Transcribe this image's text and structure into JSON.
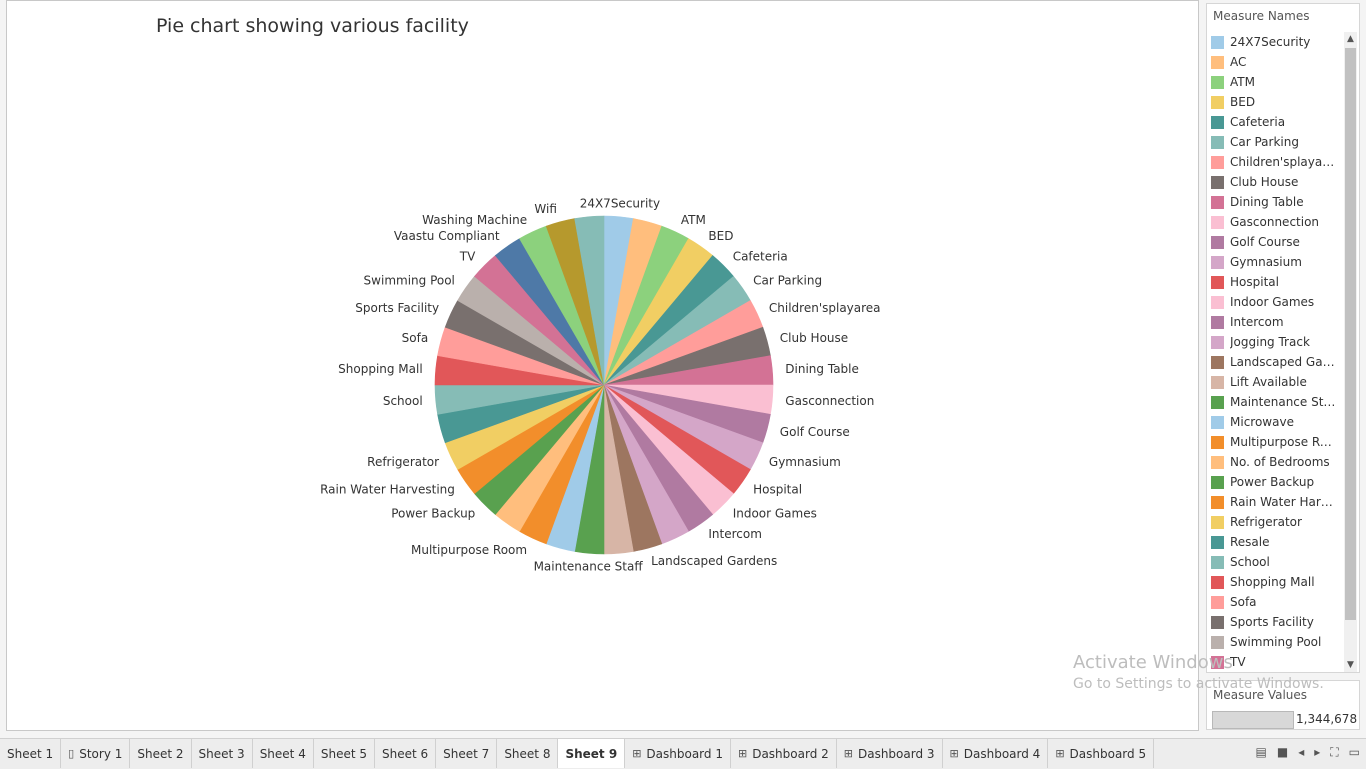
{
  "chart_data": {
    "type": "pie",
    "title": "Pie chart showing various facility",
    "legend_title": "Measure Names",
    "legend_position": "right",
    "slices": [
      {
        "label": "24X7Security",
        "color": "#a0cbe8",
        "value": 1
      },
      {
        "label": "AC",
        "color": "#ffbe7d",
        "value": 1
      },
      {
        "label": "ATM",
        "color": "#8cd17d",
        "value": 1
      },
      {
        "label": "BED",
        "color": "#f1ce63",
        "value": 1
      },
      {
        "label": "Cafeteria",
        "color": "#499894",
        "value": 1
      },
      {
        "label": "Car Parking",
        "color": "#86bcb6",
        "value": 1
      },
      {
        "label": "Children'splayarea",
        "color": "#ff9d9a",
        "value": 1
      },
      {
        "label": "Club House",
        "color": "#79706e",
        "value": 1
      },
      {
        "label": "Dining Table",
        "color": "#d37295",
        "value": 1
      },
      {
        "label": "Gasconnection",
        "color": "#fabfd2",
        "value": 1
      },
      {
        "label": "Golf Course",
        "color": "#b07aa1",
        "value": 1
      },
      {
        "label": "Gymnasium",
        "color": "#d4a6c8",
        "value": 1
      },
      {
        "label": "Hospital",
        "color": "#e15759",
        "value": 1
      },
      {
        "label": "Indoor Games",
        "color": "#fabfd2",
        "value": 1
      },
      {
        "label": "Intercom",
        "color": "#b07aa1",
        "value": 1
      },
      {
        "label": "Jogging Track",
        "color": "#d4a6c8",
        "value": 1
      },
      {
        "label": "Landscaped Gardens",
        "color": "#9d7660",
        "value": 1
      },
      {
        "label": "Lift Available",
        "color": "#d7b5a6",
        "value": 1
      },
      {
        "label": "Maintenance Staff",
        "color": "#59a14f",
        "value": 1
      },
      {
        "label": "Microwave",
        "color": "#a0cbe8",
        "value": 1
      },
      {
        "label": "Multipurpose Room",
        "color": "#f28e2b",
        "value": 1
      },
      {
        "label": "No. of Bedrooms",
        "color": "#ffbe7d",
        "value": 1
      },
      {
        "label": "Power Backup",
        "color": "#59a14f",
        "value": 1
      },
      {
        "label": "Rain Water Harvesting",
        "color": "#f28e2b",
        "value": 1
      },
      {
        "label": "Refrigerator",
        "color": "#f1ce63",
        "value": 1
      },
      {
        "label": "Resale",
        "color": "#499894",
        "value": 1
      },
      {
        "label": "School",
        "color": "#86bcb6",
        "value": 1
      },
      {
        "label": "Shopping Mall",
        "color": "#e15759",
        "value": 1
      },
      {
        "label": "Sofa",
        "color": "#ff9d9a",
        "value": 1
      },
      {
        "label": "Sports Facility",
        "color": "#79706e",
        "value": 1
      },
      {
        "label": "Swimming Pool",
        "color": "#bab0ac",
        "value": 1
      },
      {
        "label": "TV",
        "color": "#d37295",
        "value": 1
      },
      {
        "label": "Vaastu Compliant",
        "color": "#4e79a7",
        "value": 1
      },
      {
        "label": "Washing Machine",
        "color": "#8cd17d",
        "value": 1
      },
      {
        "label": "Wifi",
        "color": "#b6992d",
        "value": 1
      },
      {
        "label": "",
        "color": "#86bcb6",
        "value": 1
      }
    ],
    "visible_slice_labels": [
      "24X7Security",
      "ATM",
      "BED",
      "Cafeteria",
      "Car Parking",
      "Children'splayarea",
      "Club House",
      "Dining Table",
      "Gasconnection",
      "Golf Course",
      "Gymnasium",
      "Hospital",
      "Indoor Games",
      "Intercom",
      "Landscaped Gardens",
      "Maintenance Staff",
      "Multipurpose Room",
      "Power Backup",
      "Rain Water Harvesting",
      "Refrigerator",
      "School",
      "Shopping Mall",
      "Sofa",
      "Sports Facility",
      "Swimming Pool",
      "TV",
      "Vaastu Compliant",
      "Washing Machine",
      "Wifi"
    ]
  },
  "legend": {
    "title": "Measure Names",
    "items": [
      {
        "label": "24X7Security",
        "color": "#a0cbe8"
      },
      {
        "label": "AC",
        "color": "#ffbe7d"
      },
      {
        "label": "ATM",
        "color": "#8cd17d"
      },
      {
        "label": "BED",
        "color": "#f1ce63"
      },
      {
        "label": "Cafeteria",
        "color": "#499894"
      },
      {
        "label": "Car Parking",
        "color": "#86bcb6"
      },
      {
        "label": "Children'splayarea",
        "color": "#ff9d9a"
      },
      {
        "label": "Club House",
        "color": "#79706e"
      },
      {
        "label": "Dining Table",
        "color": "#d37295"
      },
      {
        "label": "Gasconnection",
        "color": "#fabfd2"
      },
      {
        "label": "Golf Course",
        "color": "#b07aa1"
      },
      {
        "label": "Gymnasium",
        "color": "#d4a6c8"
      },
      {
        "label": "Hospital",
        "color": "#e15759"
      },
      {
        "label": "Indoor Games",
        "color": "#fabfd2"
      },
      {
        "label": "Intercom",
        "color": "#b07aa1"
      },
      {
        "label": "Jogging Track",
        "color": "#d4a6c8"
      },
      {
        "label": "Landscaped Gard..",
        "color": "#9d7660"
      },
      {
        "label": "Lift Available",
        "color": "#d7b5a6"
      },
      {
        "label": "Maintenance Staff",
        "color": "#59a14f"
      },
      {
        "label": "Microwave",
        "color": "#a0cbe8"
      },
      {
        "label": "Multipurpose Roo..",
        "color": "#f28e2b"
      },
      {
        "label": "No. of Bedrooms",
        "color": "#ffbe7d"
      },
      {
        "label": "Power Backup",
        "color": "#59a14f"
      },
      {
        "label": "Rain Water Harve..",
        "color": "#f28e2b"
      },
      {
        "label": "Refrigerator",
        "color": "#f1ce63"
      },
      {
        "label": "Resale",
        "color": "#499894"
      },
      {
        "label": "School",
        "color": "#86bcb6"
      },
      {
        "label": "Shopping Mall",
        "color": "#e15759"
      },
      {
        "label": "Sofa",
        "color": "#ff9d9a"
      },
      {
        "label": "Sports Facility",
        "color": "#79706e"
      },
      {
        "label": "Swimming Pool",
        "color": "#bab0ac"
      },
      {
        "label": "TV",
        "color": "#d37295"
      }
    ]
  },
  "measure_values": {
    "title": "Measure Values",
    "value": "1,344,678"
  },
  "watermark": {
    "line1": "Activate Windows",
    "line2": "Go to Settings to activate Windows."
  },
  "tabs": [
    {
      "label": "Sheet 1",
      "icon": "",
      "active": false
    },
    {
      "label": "Story 1",
      "icon": "story-icon",
      "active": false
    },
    {
      "label": "Sheet 2",
      "icon": "",
      "active": false
    },
    {
      "label": "Sheet 3",
      "icon": "",
      "active": false
    },
    {
      "label": "Sheet 4",
      "icon": "",
      "active": false
    },
    {
      "label": "Sheet 5",
      "icon": "",
      "active": false
    },
    {
      "label": "Sheet 6",
      "icon": "",
      "active": false
    },
    {
      "label": "Sheet 7",
      "icon": "",
      "active": false
    },
    {
      "label": "Sheet 8",
      "icon": "",
      "active": false
    },
    {
      "label": "Sheet 9",
      "icon": "",
      "active": true
    },
    {
      "label": "Dashboard 1",
      "icon": "dashboard-icon",
      "active": false
    },
    {
      "label": "Dashboard 2",
      "icon": "dashboard-icon",
      "active": false
    },
    {
      "label": "Dashboard 3",
      "icon": "dashboard-icon",
      "active": false
    },
    {
      "label": "Dashboard 4",
      "icon": "dashboard-icon",
      "active": false
    },
    {
      "label": "Dashboard 5",
      "icon": "dashboard-icon",
      "active": false
    }
  ],
  "controls": [
    {
      "name": "filmstrip-view-icon",
      "glyph": "▤"
    },
    {
      "name": "tabs-view-icon",
      "glyph": "■"
    },
    {
      "name": "previous-sheet-icon",
      "glyph": "◂"
    },
    {
      "name": "next-sheet-icon",
      "glyph": "▸"
    },
    {
      "name": "fit-view-icon",
      "glyph": "⛶"
    },
    {
      "name": "presentation-mode-icon",
      "glyph": "▭"
    }
  ]
}
